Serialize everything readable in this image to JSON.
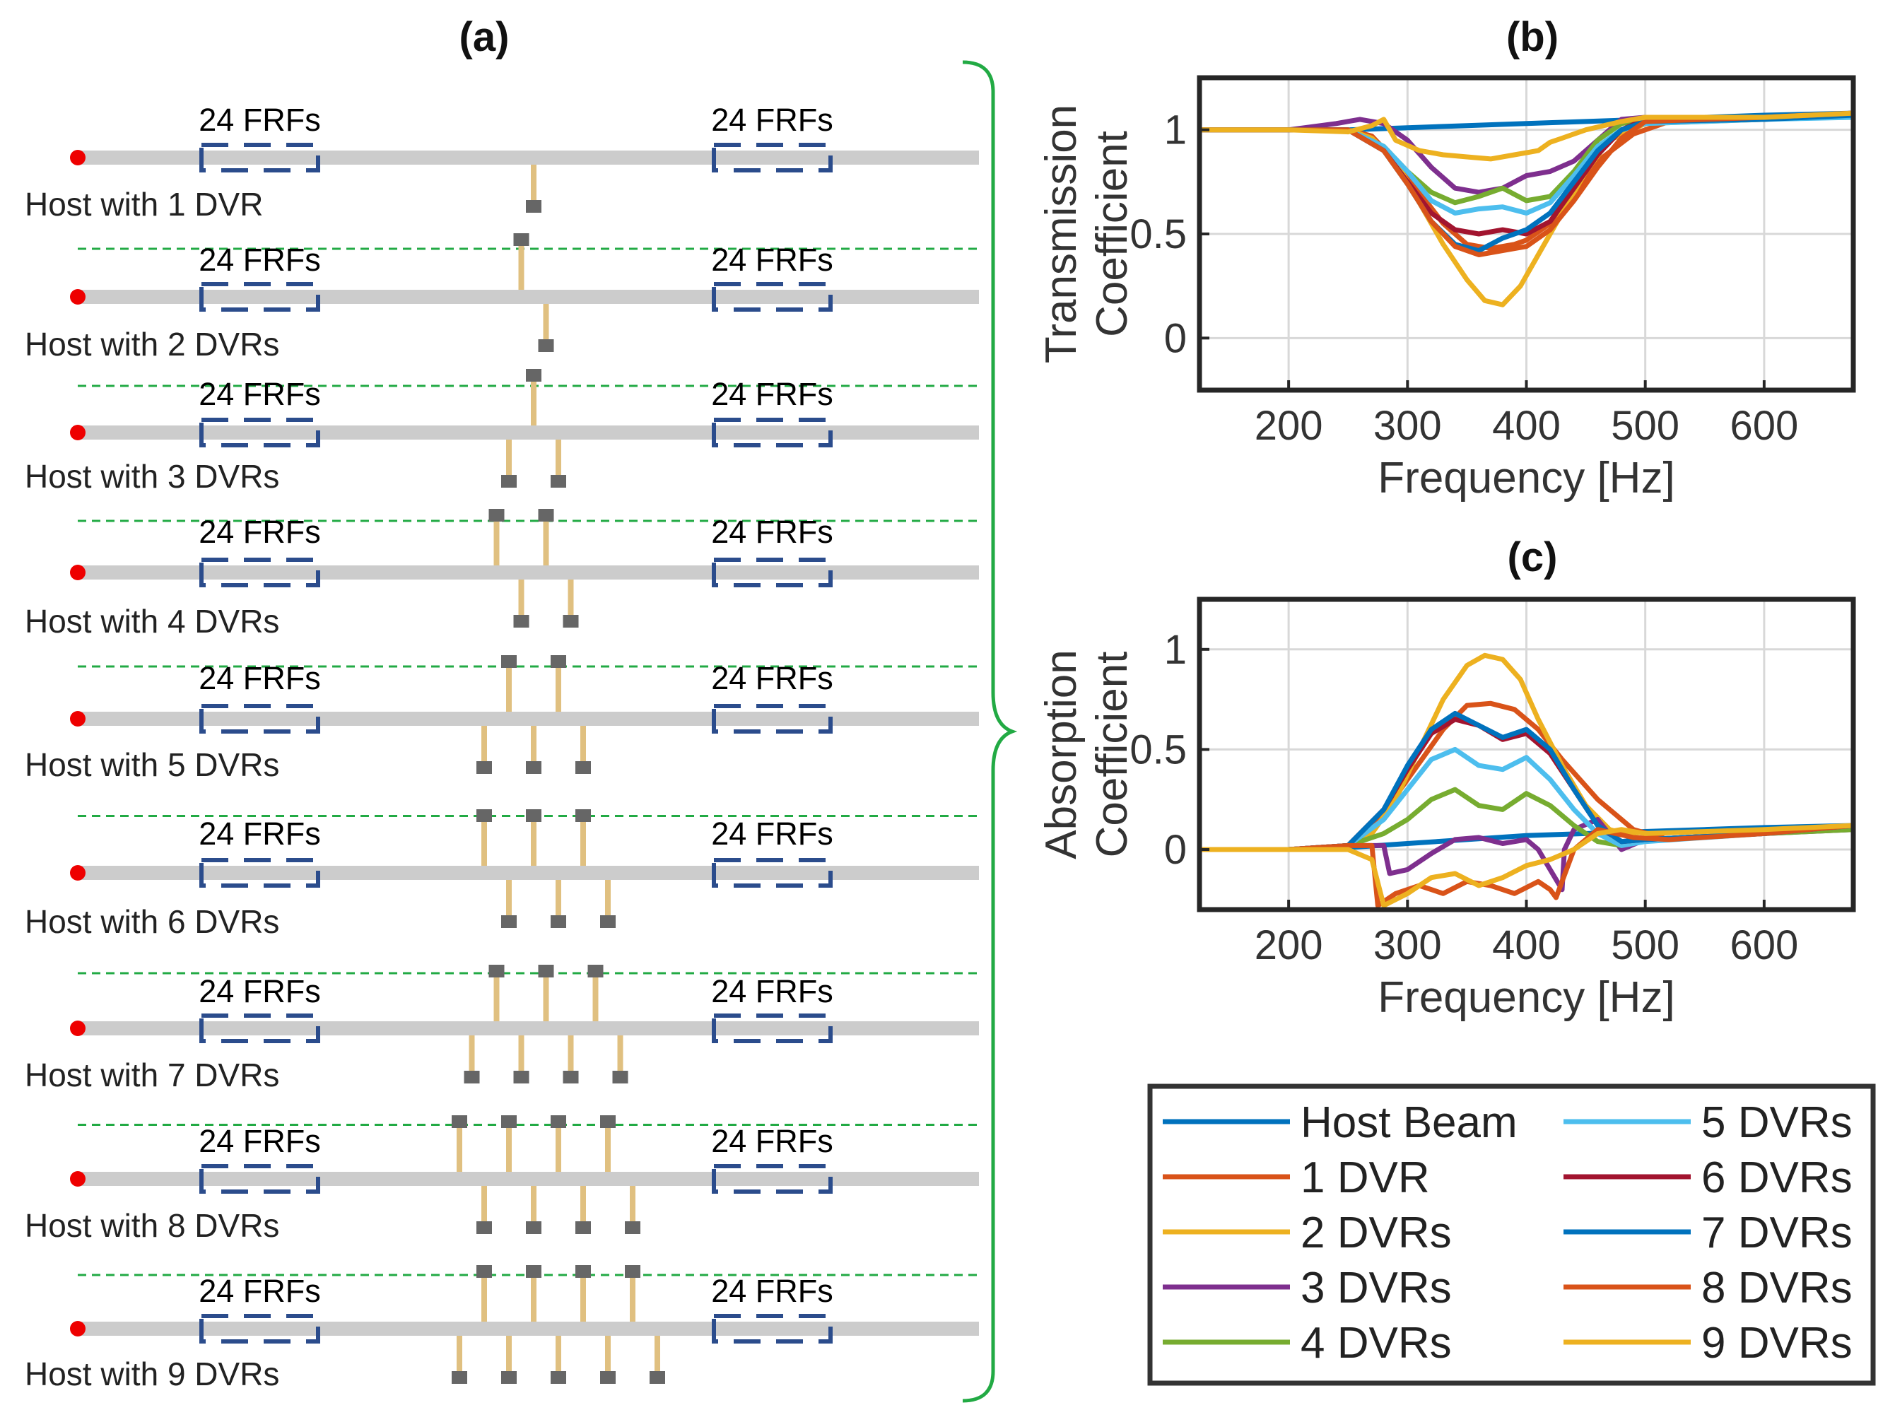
{
  "panel_titles": {
    "a": "(a)",
    "b": "(b)",
    "c": "(c)"
  },
  "frf_label": "24 FRFs",
  "rows": [
    {
      "label": "Host with 1 DVR",
      "top": [],
      "bottom": [
        0
      ]
    },
    {
      "label": "Host with 2 DVRs",
      "top": [
        -0.5
      ],
      "bottom": [
        0.5
      ]
    },
    {
      "label": "Host with 3 DVRs",
      "top": [
        0
      ],
      "bottom": [
        -1,
        1
      ]
    },
    {
      "label": "Host with 4 DVRs",
      "top": [
        -1.5,
        0.5
      ],
      "bottom": [
        -0.5,
        1.5
      ]
    },
    {
      "label": "Host with 5 DVRs",
      "top": [
        -1,
        1
      ],
      "bottom": [
        -2,
        0,
        2
      ]
    },
    {
      "label": "Host with 6 DVRs",
      "top": [
        -2,
        0,
        2
      ],
      "bottom": [
        -1,
        1,
        3
      ]
    },
    {
      "label": "Host with 7 DVRs",
      "top": [
        -1.5,
        0.5,
        2.5
      ],
      "bottom": [
        -2.5,
        -0.5,
        1.5,
        3.5
      ]
    },
    {
      "label": "Host with 8 DVRs",
      "top": [
        -3,
        -1,
        1,
        3
      ],
      "bottom": [
        -2,
        0,
        2,
        4
      ]
    },
    {
      "label": "Host with 9 DVRs",
      "top": [
        -2,
        0,
        2,
        4
      ],
      "bottom": [
        -3,
        -1,
        1,
        3,
        5
      ]
    }
  ],
  "colors": {
    "host_beam": "#0072BD",
    "dvr1": "#D95319",
    "dvr2": "#EDB120",
    "dvr3": "#7E2F8E",
    "dvr4": "#77AC30",
    "dvr5": "#4DBEEE",
    "dvr6": "#A2142F",
    "dvr7": "#0072BD",
    "dvr8": "#D95319",
    "dvr9": "#EDB120",
    "beam": "#cccccc",
    "box": "#2b4c8c",
    "dot": "#ee0000",
    "divider": "#22aa44",
    "brace": "#22aa44",
    "rod": "#e0c080",
    "mass": "#666666"
  },
  "chart_data": [
    {
      "id": "b",
      "type": "line",
      "title": "(b)",
      "xlabel": "Frequency [Hz]",
      "ylabel": [
        "Transmission",
        "Coefficient"
      ],
      "xlim": [
        125,
        675
      ],
      "ylim": [
        -0.25,
        1.25
      ],
      "xticks": [
        200,
        300,
        400,
        500,
        600
      ],
      "yticks": [
        0,
        0.5,
        1
      ],
      "ytick_labels": [
        "0",
        "0.5",
        "1"
      ],
      "grid": true,
      "series": [
        {
          "name": "Host Beam",
          "color": "#0072BD",
          "x": [
            125,
            200,
            250,
            300,
            350,
            400,
            450,
            500,
            550,
            600,
            675
          ],
          "y": [
            1.0,
            1.0,
            1.0,
            1.01,
            1.02,
            1.03,
            1.04,
            1.05,
            1.06,
            1.07,
            1.08
          ]
        },
        {
          "name": "1 DVR",
          "color": "#D95319",
          "x": [
            125,
            200,
            250,
            270,
            290,
            310,
            330,
            350,
            370,
            390,
            400,
            420,
            440,
            460,
            490,
            520,
            600,
            675
          ],
          "y": [
            1.0,
            1.0,
            1.0,
            0.97,
            0.85,
            0.7,
            0.55,
            0.45,
            0.43,
            0.45,
            0.47,
            0.55,
            0.7,
            0.85,
            0.98,
            1.04,
            1.05,
            1.08
          ]
        },
        {
          "name": "2 DVRs",
          "color": "#EDB120",
          "x": [
            125,
            200,
            250,
            270,
            290,
            310,
            330,
            350,
            365,
            380,
            395,
            410,
            430,
            450,
            470,
            500,
            600,
            675
          ],
          "y": [
            1.0,
            1.0,
            1.0,
            0.96,
            0.85,
            0.65,
            0.45,
            0.28,
            0.18,
            0.16,
            0.25,
            0.4,
            0.6,
            0.8,
            0.95,
            1.03,
            1.05,
            1.08
          ]
        },
        {
          "name": "3 DVRs",
          "color": "#7E2F8E",
          "x": [
            125,
            200,
            240,
            260,
            280,
            300,
            320,
            340,
            360,
            380,
            400,
            420,
            440,
            460,
            480,
            500,
            520,
            600,
            675
          ],
          "y": [
            1.0,
            1.0,
            1.03,
            1.05,
            1.03,
            0.95,
            0.82,
            0.72,
            0.7,
            0.72,
            0.78,
            0.8,
            0.85,
            0.95,
            1.05,
            1.06,
            1.05,
            1.06,
            1.07
          ]
        },
        {
          "name": "4 DVRs",
          "color": "#77AC30",
          "x": [
            125,
            200,
            250,
            280,
            300,
            320,
            340,
            360,
            380,
            400,
            420,
            440,
            460,
            480,
            500,
            600,
            675
          ],
          "y": [
            1.0,
            1.0,
            1.0,
            0.92,
            0.8,
            0.7,
            0.65,
            0.68,
            0.72,
            0.66,
            0.68,
            0.8,
            0.95,
            1.03,
            1.05,
            1.06,
            1.07
          ]
        },
        {
          "name": "5 DVRs",
          "color": "#4DBEEE",
          "x": [
            125,
            200,
            250,
            280,
            300,
            320,
            340,
            360,
            380,
            400,
            420,
            440,
            460,
            480,
            500,
            600,
            675
          ],
          "y": [
            1.0,
            1.0,
            1.0,
            0.92,
            0.8,
            0.66,
            0.6,
            0.62,
            0.63,
            0.6,
            0.65,
            0.78,
            0.92,
            1.0,
            1.03,
            1.05,
            1.06
          ]
        },
        {
          "name": "6 DVRs",
          "color": "#A2142F",
          "x": [
            125,
            200,
            250,
            280,
            300,
            320,
            340,
            360,
            380,
            400,
            420,
            440,
            460,
            480,
            500,
            600,
            675
          ],
          "y": [
            1.0,
            1.0,
            1.0,
            0.9,
            0.75,
            0.6,
            0.52,
            0.5,
            0.52,
            0.5,
            0.56,
            0.72,
            0.88,
            1.0,
            1.05,
            1.06,
            1.08
          ]
        },
        {
          "name": "7 DVRs",
          "color": "#0072BD",
          "x": [
            125,
            200,
            250,
            280,
            300,
            320,
            340,
            360,
            380,
            400,
            420,
            440,
            460,
            480,
            500,
            600,
            675
          ],
          "y": [
            1.0,
            1.0,
            1.0,
            0.9,
            0.74,
            0.56,
            0.45,
            0.42,
            0.48,
            0.52,
            0.6,
            0.75,
            0.9,
            1.0,
            1.04,
            1.05,
            1.07
          ]
        },
        {
          "name": "8 DVRs",
          "color": "#D95319",
          "x": [
            125,
            200,
            250,
            280,
            300,
            320,
            340,
            360,
            380,
            400,
            420,
            440,
            460,
            480,
            500,
            600,
            675
          ],
          "y": [
            1.0,
            1.0,
            1.0,
            0.9,
            0.74,
            0.56,
            0.44,
            0.4,
            0.42,
            0.44,
            0.52,
            0.66,
            0.82,
            0.96,
            1.04,
            1.06,
            1.08
          ]
        },
        {
          "name": "9 DVRs",
          "color": "#EDB120",
          "x": [
            125,
            200,
            250,
            270,
            280,
            290,
            310,
            330,
            350,
            370,
            390,
            410,
            420,
            430,
            450,
            480,
            500,
            600,
            675
          ],
          "y": [
            1.0,
            1.0,
            0.99,
            1.02,
            1.05,
            0.95,
            0.9,
            0.88,
            0.87,
            0.86,
            0.88,
            0.9,
            0.94,
            0.96,
            1.0,
            1.04,
            1.06,
            1.06,
            1.08
          ]
        }
      ]
    },
    {
      "id": "c",
      "type": "line",
      "title": "(c)",
      "xlabel": "Frequency [Hz]",
      "ylabel": [
        "Absorption",
        "Coefficient"
      ],
      "xlim": [
        125,
        675
      ],
      "ylim": [
        -0.3,
        1.25
      ],
      "xticks": [
        200,
        300,
        400,
        500,
        600
      ],
      "yticks": [
        0,
        0.5,
        1
      ],
      "ytick_labels": [
        "0",
        "0.5",
        "1"
      ],
      "grid": true,
      "series": [
        {
          "name": "Host Beam",
          "color": "#0072BD",
          "x": [
            125,
            200,
            250,
            300,
            350,
            400,
            450,
            500,
            550,
            600,
            675
          ],
          "y": [
            0.0,
            0.0,
            0.01,
            0.03,
            0.05,
            0.07,
            0.08,
            0.09,
            0.1,
            0.11,
            0.12
          ]
        },
        {
          "name": "1 DVR",
          "color": "#D95319",
          "x": [
            125,
            200,
            250,
            270,
            300,
            330,
            350,
            370,
            390,
            410,
            430,
            460,
            490,
            520,
            600,
            675
          ],
          "y": [
            0.0,
            0.0,
            0.02,
            0.1,
            0.35,
            0.6,
            0.72,
            0.73,
            0.7,
            0.6,
            0.45,
            0.25,
            0.1,
            0.05,
            0.08,
            0.12
          ]
        },
        {
          "name": "2 DVRs",
          "color": "#EDB120",
          "x": [
            125,
            200,
            250,
            270,
            290,
            310,
            330,
            350,
            365,
            380,
            395,
            410,
            430,
            450,
            470,
            500,
            600,
            675
          ],
          "y": [
            0.0,
            0.0,
            0.02,
            0.08,
            0.25,
            0.5,
            0.75,
            0.92,
            0.97,
            0.95,
            0.85,
            0.65,
            0.42,
            0.22,
            0.1,
            0.05,
            0.08,
            0.12
          ]
        },
        {
          "name": "3 DVRs",
          "color": "#7E2F8E",
          "x": [
            125,
            200,
            250,
            280,
            285,
            300,
            320,
            340,
            360,
            380,
            400,
            410,
            420,
            430,
            432,
            440,
            460,
            480,
            500,
            600,
            675
          ],
          "y": [
            0.0,
            0.0,
            0.02,
            0.02,
            -0.12,
            -0.1,
            -0.02,
            0.05,
            0.06,
            0.03,
            0.05,
            0.0,
            -0.1,
            -0.2,
            0.0,
            0.1,
            0.15,
            0.0,
            0.05,
            0.08,
            0.1
          ]
        },
        {
          "name": "4 DVRs",
          "color": "#77AC30",
          "x": [
            125,
            200,
            250,
            280,
            300,
            320,
            340,
            360,
            380,
            400,
            420,
            440,
            460,
            480,
            500,
            600,
            675
          ],
          "y": [
            0.0,
            0.0,
            0.02,
            0.08,
            0.15,
            0.25,
            0.3,
            0.22,
            0.2,
            0.28,
            0.22,
            0.12,
            0.04,
            0.02,
            0.05,
            0.08,
            0.1
          ]
        },
        {
          "name": "5 DVRs",
          "color": "#4DBEEE",
          "x": [
            125,
            200,
            250,
            280,
            300,
            320,
            340,
            360,
            380,
            400,
            420,
            440,
            460,
            480,
            500,
            600,
            675
          ],
          "y": [
            0.0,
            0.0,
            0.02,
            0.15,
            0.3,
            0.45,
            0.5,
            0.42,
            0.4,
            0.46,
            0.35,
            0.2,
            0.08,
            0.02,
            0.04,
            0.08,
            0.12
          ]
        },
        {
          "name": "6 DVRs",
          "color": "#A2142F",
          "x": [
            125,
            200,
            250,
            280,
            300,
            320,
            340,
            360,
            380,
            400,
            420,
            440,
            460,
            480,
            500,
            600,
            675
          ],
          "y": [
            0.0,
            0.0,
            0.02,
            0.2,
            0.4,
            0.58,
            0.65,
            0.62,
            0.55,
            0.58,
            0.48,
            0.3,
            0.12,
            0.04,
            0.05,
            0.08,
            0.12
          ]
        },
        {
          "name": "7 DVRs",
          "color": "#0072BD",
          "x": [
            125,
            200,
            250,
            280,
            300,
            320,
            340,
            360,
            380,
            400,
            420,
            440,
            460,
            480,
            500,
            600,
            675
          ],
          "y": [
            0.0,
            0.0,
            0.02,
            0.2,
            0.42,
            0.6,
            0.68,
            0.62,
            0.56,
            0.6,
            0.5,
            0.3,
            0.12,
            0.04,
            0.05,
            0.08,
            0.12
          ]
        },
        {
          "name": "8 DVRs",
          "color": "#D95319",
          "x": [
            125,
            200,
            250,
            270,
            275,
            290,
            310,
            330,
            350,
            370,
            390,
            410,
            420,
            425,
            440,
            460,
            490,
            520,
            600,
            675
          ],
          "y": [
            0.0,
            0.0,
            0.02,
            0.02,
            -0.28,
            -0.22,
            -0.18,
            -0.22,
            -0.16,
            -0.18,
            -0.22,
            -0.16,
            -0.2,
            -0.24,
            0.0,
            0.1,
            0.06,
            0.05,
            0.08,
            0.12
          ]
        },
        {
          "name": "9 DVRs",
          "color": "#EDB120",
          "x": [
            125,
            200,
            250,
            270,
            280,
            300,
            320,
            340,
            360,
            380,
            400,
            420,
            440,
            460,
            480,
            500,
            600,
            675
          ],
          "y": [
            0.0,
            0.0,
            0.0,
            -0.05,
            -0.28,
            -0.22,
            -0.14,
            -0.12,
            -0.18,
            -0.14,
            -0.08,
            -0.05,
            0.0,
            0.08,
            0.1,
            0.08,
            0.1,
            0.12
          ]
        }
      ]
    }
  ],
  "legend": [
    {
      "label": "Host Beam",
      "color": "#0072BD"
    },
    {
      "label": "1 DVR",
      "color": "#D95319"
    },
    {
      "label": "2 DVRs",
      "color": "#EDB120"
    },
    {
      "label": "3 DVRs",
      "color": "#7E2F8E"
    },
    {
      "label": "4 DVRs",
      "color": "#77AC30"
    },
    {
      "label": "5 DVRs",
      "color": "#4DBEEE"
    },
    {
      "label": "6 DVRs",
      "color": "#A2142F"
    },
    {
      "label": "7 DVRs",
      "color": "#0072BD"
    },
    {
      "label": "8 DVRs",
      "color": "#D95319"
    },
    {
      "label": "9 DVRs",
      "color": "#EDB120"
    }
  ]
}
